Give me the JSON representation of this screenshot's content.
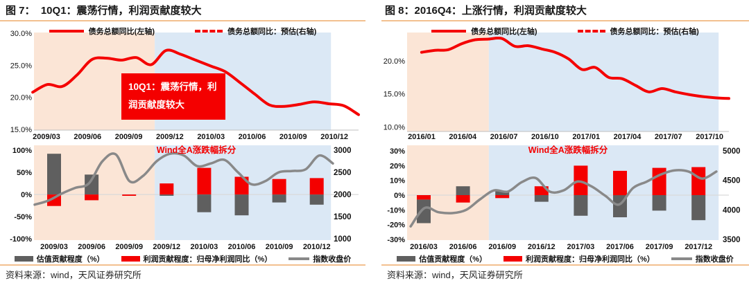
{
  "colors": {
    "red": "#f40000",
    "gray_bar": "#5f5f5f",
    "gray_line": "#898989",
    "band_orange": "#fbe5d6",
    "band_blue": "#dbe8f5",
    "rule": "#f3c08f",
    "zero_gridline": "#d9d9d9",
    "axis_line": "#bfbfbf",
    "tick_text": "#111111"
  },
  "figures": [
    {
      "id": "fig7",
      "title": "图 7：  10Q1：震荡行情，利润贡献度较大",
      "top_legend": [
        {
          "label": "债务总额同比(左轴)",
          "style": "solid"
        },
        {
          "label": "债务总额同比：预估(右轴)",
          "style": "dashed"
        }
      ],
      "bottom_legend": [
        {
          "label": "估值贡献程度（%）",
          "swatch": "gray-box"
        },
        {
          "label": "利润贡献程度：归母净利润同比（%）",
          "swatch": "red-box"
        },
        {
          "label": "指数收盘价",
          "swatch": "gray-line"
        }
      ],
      "source": "资料来源：wind，天风证券研究所"
    },
    {
      "id": "fig8",
      "title": "图 8：2016Q4：上涨行情，利润贡献度较大",
      "top_legend": [
        {
          "label": "债务总额同比(左轴)",
          "style": "solid"
        },
        {
          "label": "债务总额同比：预估(右轴)",
          "style": "dashed"
        }
      ],
      "bottom_legend": [
        {
          "label": "估值贡献程度（%）",
          "swatch": "gray-box"
        },
        {
          "label": "利润贡献程度：归母净利润同比（%）",
          "swatch": "red-box"
        },
        {
          "label": "指数收盘价",
          "swatch": "gray-line"
        }
      ],
      "source": "资料来源：wind，天风证券研究所"
    }
  ],
  "chart_data": [
    {
      "id": "fig7-top",
      "figure": "fig7",
      "type": "line",
      "title": "",
      "ylabel": "债务总额同比",
      "ylim": [
        15,
        30
      ],
      "annotation": "10Q1：震荡行情，利润贡献度较大",
      "xticks": [
        "2009/03",
        "2009/06",
        "2009/09",
        "2009/12",
        "2010/03",
        "2010/06",
        "2010/09",
        "2010/12"
      ],
      "yticks": [
        {
          "label": "30.0%",
          "v": 30
        },
        {
          "label": "25.0%",
          "v": 25
        },
        {
          "label": "20.0%",
          "v": 20
        },
        {
          "label": "15.0%",
          "v": 15
        }
      ],
      "x": [
        "2009/02",
        "2009/03",
        "2009/04",
        "2009/05",
        "2009/06",
        "2009/07",
        "2009/08",
        "2009/09",
        "2009/10",
        "2009/11",
        "2009/12",
        "2010/01",
        "2010/02",
        "2010/03",
        "2010/04",
        "2010/05",
        "2010/06",
        "2010/07",
        "2010/08",
        "2010/09",
        "2010/10",
        "2010/11",
        "2010/12"
      ],
      "series": [
        {
          "name": "债务总额同比(左轴)",
          "kind": "line",
          "axis": "left",
          "color": "red",
          "values": [
            20.8,
            22.0,
            21.7,
            23.5,
            25.9,
            26.1,
            25.8,
            26.2,
            25.1,
            27.3,
            26.7,
            25.8,
            24.9,
            24.0,
            22.3,
            20.5,
            18.8,
            18.6,
            18.9,
            19.3,
            19.0,
            18.7,
            17.3
          ]
        }
      ]
    },
    {
      "id": "fig7-bottom",
      "figure": "fig7",
      "type": "bar",
      "inner_title": "Wind全A涨跌幅拆分",
      "ylim_left": [
        -100,
        100
      ],
      "ylim_right": [
        1000,
        3000
      ],
      "categories": [
        "2009/03",
        "2009/06",
        "2009/09",
        "2009/12",
        "2010/03",
        "2010/06",
        "2010/09",
        "2010/12"
      ],
      "xticks": [
        "2009/03",
        "2009/06",
        "2009/09",
        "2009/12",
        "2010/03",
        "2010/06",
        "2010/09",
        "2010/12"
      ],
      "yticks_left": [
        {
          "label": "100%",
          "v": 100
        },
        {
          "label": "50%",
          "v": 50
        },
        {
          "label": "0%",
          "v": 0
        },
        {
          "label": "-50%",
          "v": -50
        },
        {
          "label": "-100%",
          "v": -100
        }
      ],
      "yticks_right": [
        {
          "label": "3000",
          "v": 3000
        },
        {
          "label": "2500",
          "v": 2500
        },
        {
          "label": "2000",
          "v": 2000
        },
        {
          "label": "1500",
          "v": 1500
        },
        {
          "label": "1000",
          "v": 1000
        }
      ],
      "series": [
        {
          "name": "估值贡献程度（%）",
          "kind": "bar",
          "axis": "left",
          "color": "gray",
          "values": [
            92,
            45,
            0,
            -3,
            -40,
            -47,
            -18,
            -23
          ]
        },
        {
          "name": "利润贡献程度：归母净利润同比（%）",
          "kind": "bar",
          "axis": "left",
          "color": "red",
          "values": [
            -26,
            -13,
            -3,
            25,
            60,
            40,
            35,
            37
          ]
        },
        {
          "name": "指数收盘价",
          "kind": "line",
          "axis": "right",
          "color": "grayline",
          "x": [
            "2009/02",
            "2009/03",
            "2009/04",
            "2009/05",
            "2009/06",
            "2009/07",
            "2009/08",
            "2009/09",
            "2009/10",
            "2009/11",
            "2009/12",
            "2010/01",
            "2010/02",
            "2010/03",
            "2010/04",
            "2010/05",
            "2010/06",
            "2010/07",
            "2010/08",
            "2010/09",
            "2010/10",
            "2010/11",
            "2010/12"
          ],
          "values": [
            1770,
            1860,
            2020,
            2150,
            2250,
            2750,
            2900,
            2300,
            2420,
            2750,
            2920,
            2880,
            2640,
            2700,
            2780,
            2500,
            2230,
            2300,
            2500,
            2530,
            2570,
            2880,
            2700
          ]
        }
      ]
    },
    {
      "id": "fig8-top",
      "figure": "fig8",
      "type": "line",
      "title": "",
      "ylabel": "债务总额同比",
      "ylim": [
        10,
        25
      ],
      "xticks": [
        "2016/01",
        "2016/04",
        "2016/07",
        "2016/10",
        "2017/01",
        "2017/04",
        "2017/07",
        "2017/10"
      ],
      "yticks": [
        {
          "label": "20.0%",
          "v": 20
        },
        {
          "label": "15.0%",
          "v": 15
        },
        {
          "label": "10.0%",
          "v": 10
        }
      ],
      "x": [
        "2016/01",
        "2016/02",
        "2016/03",
        "2016/04",
        "2016/05",
        "2016/06",
        "2016/07",
        "2016/08",
        "2016/09",
        "2016/10",
        "2016/11",
        "2016/12",
        "2017/01",
        "2017/02",
        "2017/03",
        "2017/04",
        "2017/05",
        "2017/06",
        "2017/07",
        "2017/08",
        "2017/09",
        "2017/10",
        "2017/11",
        "2017/12"
      ],
      "series": [
        {
          "name": "债务总额同比(左轴)",
          "kind": "line",
          "axis": "left",
          "color": "red",
          "values": [
            21.3,
            21.6,
            21.7,
            22.6,
            23.2,
            23.3,
            23.4,
            22.2,
            22.3,
            21.8,
            21.3,
            20.3,
            18.7,
            19.0,
            17.5,
            17.3,
            16.3,
            15.3,
            15.8,
            15.3,
            14.9,
            14.6,
            14.4,
            14.3
          ]
        }
      ]
    },
    {
      "id": "fig8-bottom",
      "figure": "fig8",
      "type": "bar",
      "inner_title": "Wind全A涨跌幅拆分",
      "ylim_left": [
        -30,
        30
      ],
      "ylim_right": [
        3500,
        5000
      ],
      "categories": [
        "2016/03",
        "2016/06",
        "2016/09",
        "2016/12",
        "2017/03",
        "2017/06",
        "2017/09",
        "2017/12"
      ],
      "xticks": [
        "2016/03",
        "2016/06",
        "2016/09",
        "2016/12",
        "2017/03",
        "2017/06",
        "2017/09",
        "2017/12"
      ],
      "yticks_left": [
        {
          "label": "30%",
          "v": 30
        },
        {
          "label": "20%",
          "v": 20
        },
        {
          "label": "10%",
          "v": 10
        },
        {
          "label": "0%",
          "v": 0
        },
        {
          "label": "-10%",
          "v": -10
        },
        {
          "label": "-20%",
          "v": -20
        },
        {
          "label": "-30%",
          "v": -30
        }
      ],
      "yticks_right": [
        {
          "label": "5000",
          "v": 5000
        },
        {
          "label": "4500",
          "v": 4500
        },
        {
          "label": "4000",
          "v": 4000
        },
        {
          "label": "3500",
          "v": 3500
        }
      ],
      "series": [
        {
          "name": "估值贡献程度（%）",
          "kind": "bar",
          "axis": "left",
          "color": "gray",
          "values": [
            -16,
            6,
            3,
            -4.5,
            -14,
            -15,
            -10.5,
            -17
          ]
        },
        {
          "name": "利润贡献程度：归母净利润同比（%）",
          "kind": "bar",
          "axis": "left",
          "color": "red",
          "values": [
            -3,
            -5,
            -2,
            6,
            20,
            16.5,
            18.5,
            19
          ]
        },
        {
          "name": "指数收盘价",
          "kind": "line",
          "axis": "right",
          "color": "grayline",
          "x": [
            "2016/02",
            "2016/03",
            "2016/04",
            "2016/05",
            "2016/06",
            "2016/07",
            "2016/08",
            "2016/09",
            "2016/10",
            "2016/11",
            "2016/12",
            "2017/01",
            "2017/02",
            "2017/03",
            "2017/04",
            "2017/05",
            "2017/06",
            "2017/07",
            "2017/08",
            "2017/09",
            "2017/10",
            "2017/11",
            "2017/12"
          ],
          "values": [
            3720,
            4030,
            3960,
            3945,
            4000,
            4180,
            4330,
            4310,
            4470,
            4540,
            4310,
            4330,
            4480,
            4400,
            4240,
            4090,
            4370,
            4480,
            4600,
            4670,
            4650,
            4530,
            4650
          ]
        }
      ]
    }
  ]
}
